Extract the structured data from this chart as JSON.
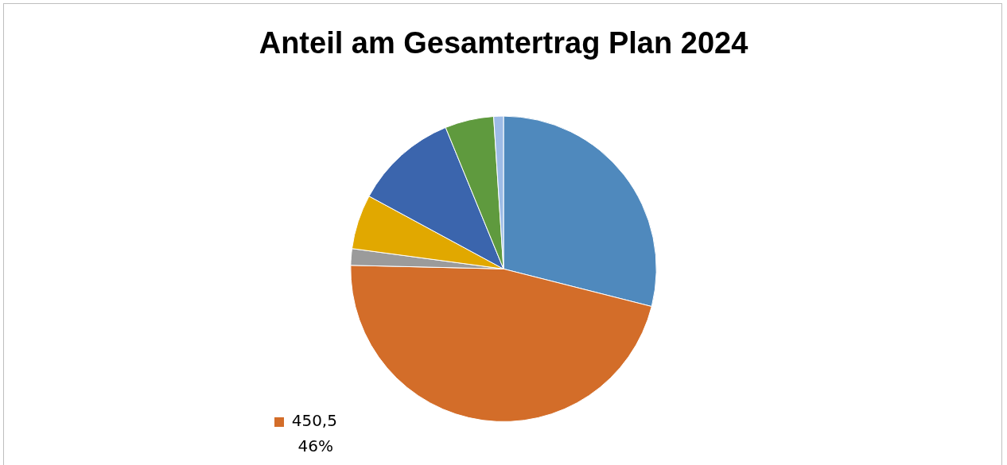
{
  "chart_data": {
    "type": "pie",
    "title": "Anteil am Gesamtertrag Plan 2024",
    "categories": [
      null,
      null,
      null,
      null,
      null,
      null,
      null
    ],
    "values": [
      281,
      450.5,
      17,
      56,
      106,
      50,
      10
    ],
    "colors": [
      "#4f89bd",
      "#d36d29",
      "#9b9b9b",
      "#e1a800",
      "#3b65ad",
      "#5f9a3e",
      "#9dbbe6"
    ],
    "value_labels": [
      null,
      "450,5\n46%",
      null,
      null,
      null,
      null,
      null
    ],
    "legend": false
  }
}
